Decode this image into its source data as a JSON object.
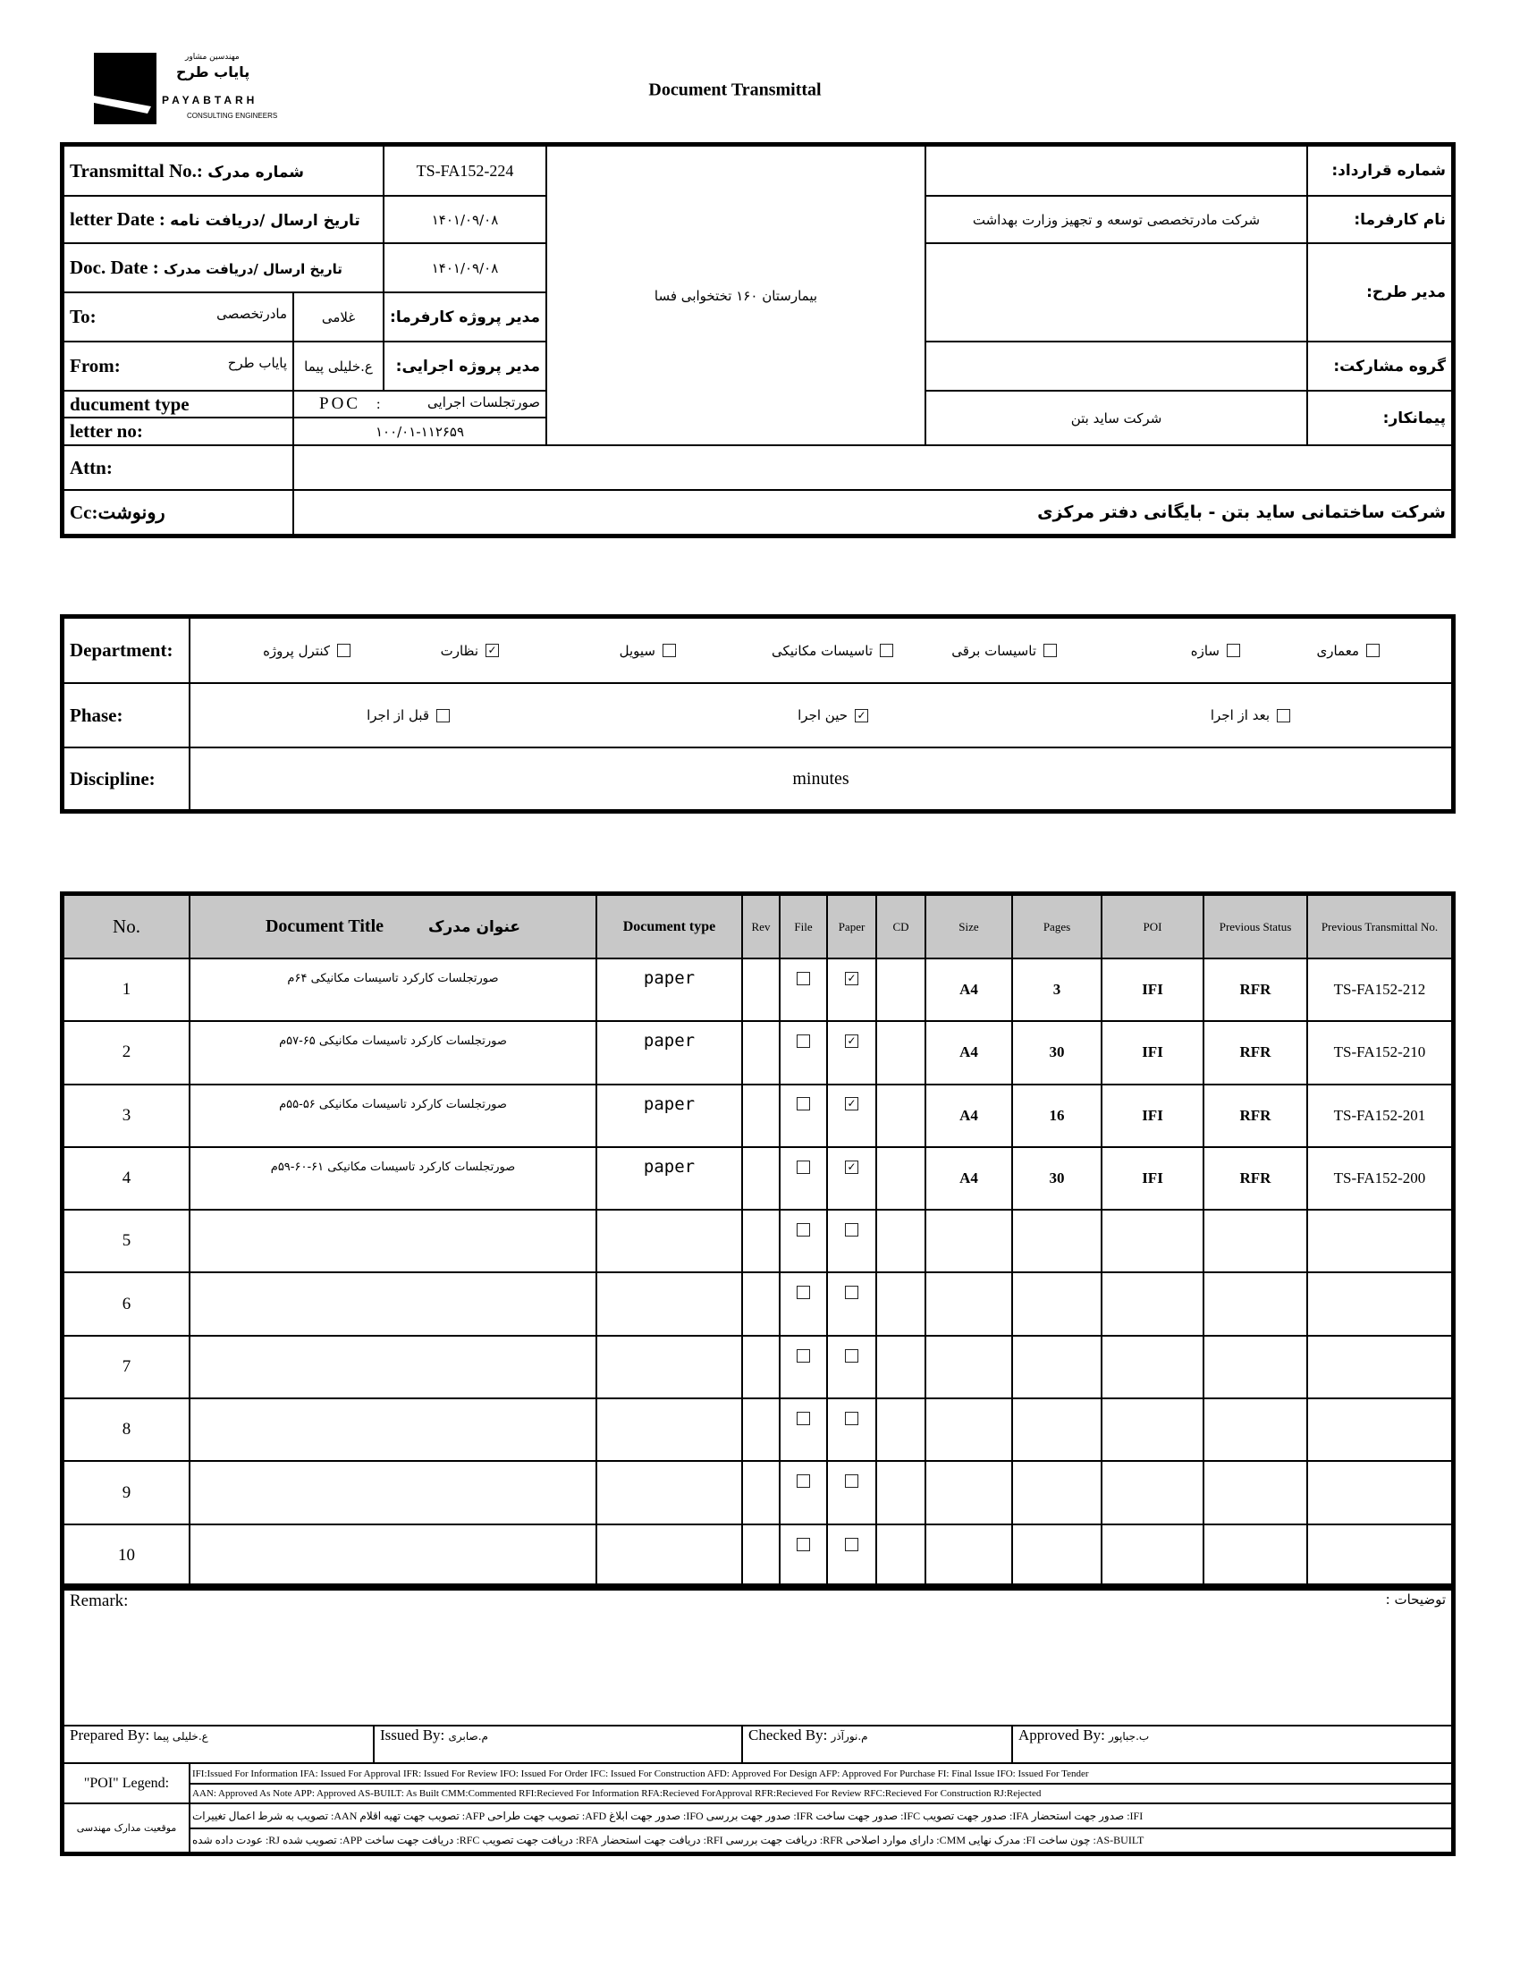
{
  "header": {
    "title": "Document Transmittal",
    "logo": {
      "fa_small": "مهندسین مشاور",
      "fa_name": "پایاب طرح",
      "en_name": "PAYABTARH",
      "en_sub": "CONSULTING ENGINEERS"
    }
  },
  "info": {
    "transmittal_label": "Transmittal No.:",
    "transmittal_label_fa": "شماره مدرک",
    "transmittal_no": "TS-FA152-224",
    "letter_date_label": "letter Date :",
    "letter_date_label_fa": "تاریخ ارسال /دریافت نامه",
    "letter_date": "۱۴۰۱/۰۹/۰۸",
    "doc_date_label": "Doc. Date :",
    "doc_date_label_fa": "تاریخ ارسال /دریافت مدرک",
    "doc_date": "۱۴۰۱/۰۹/۰۸",
    "to_label": "To:",
    "to_value": "مادرتخصصی",
    "to_person": "غلامی",
    "client_pm_label": "مدیر پروژه کارفرما:",
    "from_label": "From:",
    "from_value": "پایاب طرح",
    "from_person": "ع.خلیلی پیما",
    "exec_pm_label": "مدیر پروژه اجرایی:",
    "doc_type_label": "ducument type",
    "doc_type_code": "POC",
    "doc_type_sep": ":",
    "doc_type_value": "صورتجلسات اجرایی",
    "letter_no_label": "letter no:",
    "letter_no": "۱۰۰/۰۱-۱۱۲۶۵۹",
    "project": "بیمارستان ۱۶۰ تختخوابی فسا",
    "contract_no_label": "شماره قرارداد:",
    "contract_no": "",
    "client_label": "نام کارفرما:",
    "client": "شرکت مادرتخصصی توسعه و تجهیز وزارت بهداشت",
    "plan_manager_label": "مدیر طرح:",
    "plan_manager": "",
    "partnership_label": "گروه مشارکت:",
    "partnership": "",
    "contractor_label": "پیمانکار:",
    "contractor": "شرکت ساید بتن",
    "attn_label": "Attn:",
    "attn": "",
    "cc_label": "Cc:رونوشت",
    "cc": "شرکت ساختمانی ساید بتن - بایگانی دفتر مرکزی"
  },
  "department": {
    "label": "Department:",
    "items": [
      {
        "label": "معماری",
        "checked": false
      },
      {
        "label": "سازه",
        "checked": false
      },
      {
        "label": "تاسیسات برقی",
        "checked": false
      },
      {
        "label": "تاسیسات مکانیکی",
        "checked": false
      },
      {
        "label": "سیویل",
        "checked": false
      },
      {
        "label": "نظارت",
        "checked": true
      },
      {
        "label": "کنترل پروژه",
        "checked": false
      }
    ]
  },
  "phase": {
    "label": "Phase:",
    "items": [
      {
        "label": "قبل از اجرا",
        "checked": false
      },
      {
        "label": "حین اجرا",
        "checked": true
      },
      {
        "label": "بعد از اجرا",
        "checked": false
      }
    ]
  },
  "discipline": {
    "label": "Discipline:",
    "value": "minutes"
  },
  "documents": {
    "headers": {
      "no": "No.",
      "title": "Document Title",
      "title_fa": "عنوان مدرک",
      "doc_type": "Document type",
      "rev": "Rev",
      "file": "File",
      "paper": "Paper",
      "cd": "CD",
      "size": "Size",
      "pages": "Pages",
      "poi": "POI",
      "prev_status": "Previous Status",
      "prev_transmittal": "Previous Transmittal No."
    },
    "rows": [
      {
        "no": "1",
        "title": "صورتجلسات کارکرد تاسیسات مکانیکی ۶۴م",
        "doc_type": "paper",
        "rev": "",
        "file": false,
        "paper": true,
        "cd": "",
        "size": "A4",
        "pages": "3",
        "poi": "IFI",
        "prev_status": "RFR",
        "prev_transmittal": "TS-FA152-212"
      },
      {
        "no": "2",
        "title": "صورتجلسات کارکرد تاسیسات مکانیکی ۶۵-۵۷م",
        "doc_type": "paper",
        "rev": "",
        "file": false,
        "paper": true,
        "cd": "",
        "size": "A4",
        "pages": "30",
        "poi": "IFI",
        "prev_status": "RFR",
        "prev_transmittal": "TS-FA152-210"
      },
      {
        "no": "3",
        "title": "صورتجلسات کارکرد تاسیسات مکانیکی ۵۶-۵۵م",
        "doc_type": "paper",
        "rev": "",
        "file": false,
        "paper": true,
        "cd": "",
        "size": "A4",
        "pages": "16",
        "poi": "IFI",
        "prev_status": "RFR",
        "prev_transmittal": "TS-FA152-201"
      },
      {
        "no": "4",
        "title": "صورتجلسات کارکرد تاسیسات مکانیکی ۶۱-۶۰-۵۹م",
        "doc_type": "paper",
        "rev": "",
        "file": false,
        "paper": true,
        "cd": "",
        "size": "A4",
        "pages": "30",
        "poi": "IFI",
        "prev_status": "RFR",
        "prev_transmittal": "TS-FA152-200"
      },
      {
        "no": "5",
        "title": "",
        "doc_type": "",
        "rev": "",
        "file": false,
        "paper": false,
        "cd": "",
        "size": "",
        "pages": "",
        "poi": "",
        "prev_status": "",
        "prev_transmittal": ""
      },
      {
        "no": "6",
        "title": "",
        "doc_type": "",
        "rev": "",
        "file": false,
        "paper": false,
        "cd": "",
        "size": "",
        "pages": "",
        "poi": "",
        "prev_status": "",
        "prev_transmittal": ""
      },
      {
        "no": "7",
        "title": "",
        "doc_type": "",
        "rev": "",
        "file": false,
        "paper": false,
        "cd": "",
        "size": "",
        "pages": "",
        "poi": "",
        "prev_status": "",
        "prev_transmittal": ""
      },
      {
        "no": "8",
        "title": "",
        "doc_type": "",
        "rev": "",
        "file": false,
        "paper": false,
        "cd": "",
        "size": "",
        "pages": "",
        "poi": "",
        "prev_status": "",
        "prev_transmittal": ""
      },
      {
        "no": "9",
        "title": "",
        "doc_type": "",
        "rev": "",
        "file": false,
        "paper": false,
        "cd": "",
        "size": "",
        "pages": "",
        "poi": "",
        "prev_status": "",
        "prev_transmittal": ""
      },
      {
        "no": "10",
        "title": "",
        "doc_type": "",
        "rev": "",
        "file": false,
        "paper": false,
        "cd": "",
        "size": "",
        "pages": "",
        "poi": "",
        "prev_status": "",
        "prev_transmittal": ""
      }
    ]
  },
  "footer": {
    "remark_label": "Remark:",
    "remark_label_fa": "توضیحات :",
    "prepared_label": "Prepared By:",
    "prepared": "ع.خلیلی پیما",
    "issued_label": "Issued By:",
    "issued": "م.صابری",
    "checked_label": "Checked By:",
    "checked": "م.نورآذر",
    "approved_label": "Approved By:",
    "approved": "ب.جباپور",
    "poi_legend_label": "\"POI\" Legend:",
    "poi_legend_1": "IFI:Issued For Information  IFA: Issued For Approval  IFR: Issued For Review   IFO: Issued For Order  IFC: Issued For Construction AFD: Approved For Design AFP: Approved For Purchase  FI: Final Issue  IFO: Issued For Tender",
    "poi_legend_2": "AAN: Approved As Note  APP: Approved  AS-BUILT: As Built CMM:Commented  RFI:Recieved For Information   RFA:Recieved ForApproval   RFR:Recieved For Review  RFC:Recieved For Construction  RJ:Rejected",
    "status_label": "موقعیت مدارک مهندسی",
    "status_1": "IFI: صدور جهت استحضار   IFA: صدور جهت تصویب  IFC: صدور جهت ساخت  IFR: صدور جهت بررسی  IFO: صدور جهت ابلاغ   AFD: تصویب جهت طراحی   AFP: تصویب جهت تهیه اقلام   AAN: تصویب به شرط اعمال تغییرات",
    "status_2": "AS-BUILT: چون ساخت  FI: مدرک نهایی  CMM: دارای موارد اصلاحی   RFR: دریافت جهت بررسی  RFI: دریافت جهت استحضار  RFA: دریافت جهت تصویب   RFC: دریافت جهت ساخت   APP: تصویب شده   RJ: عودت داده شده"
  }
}
